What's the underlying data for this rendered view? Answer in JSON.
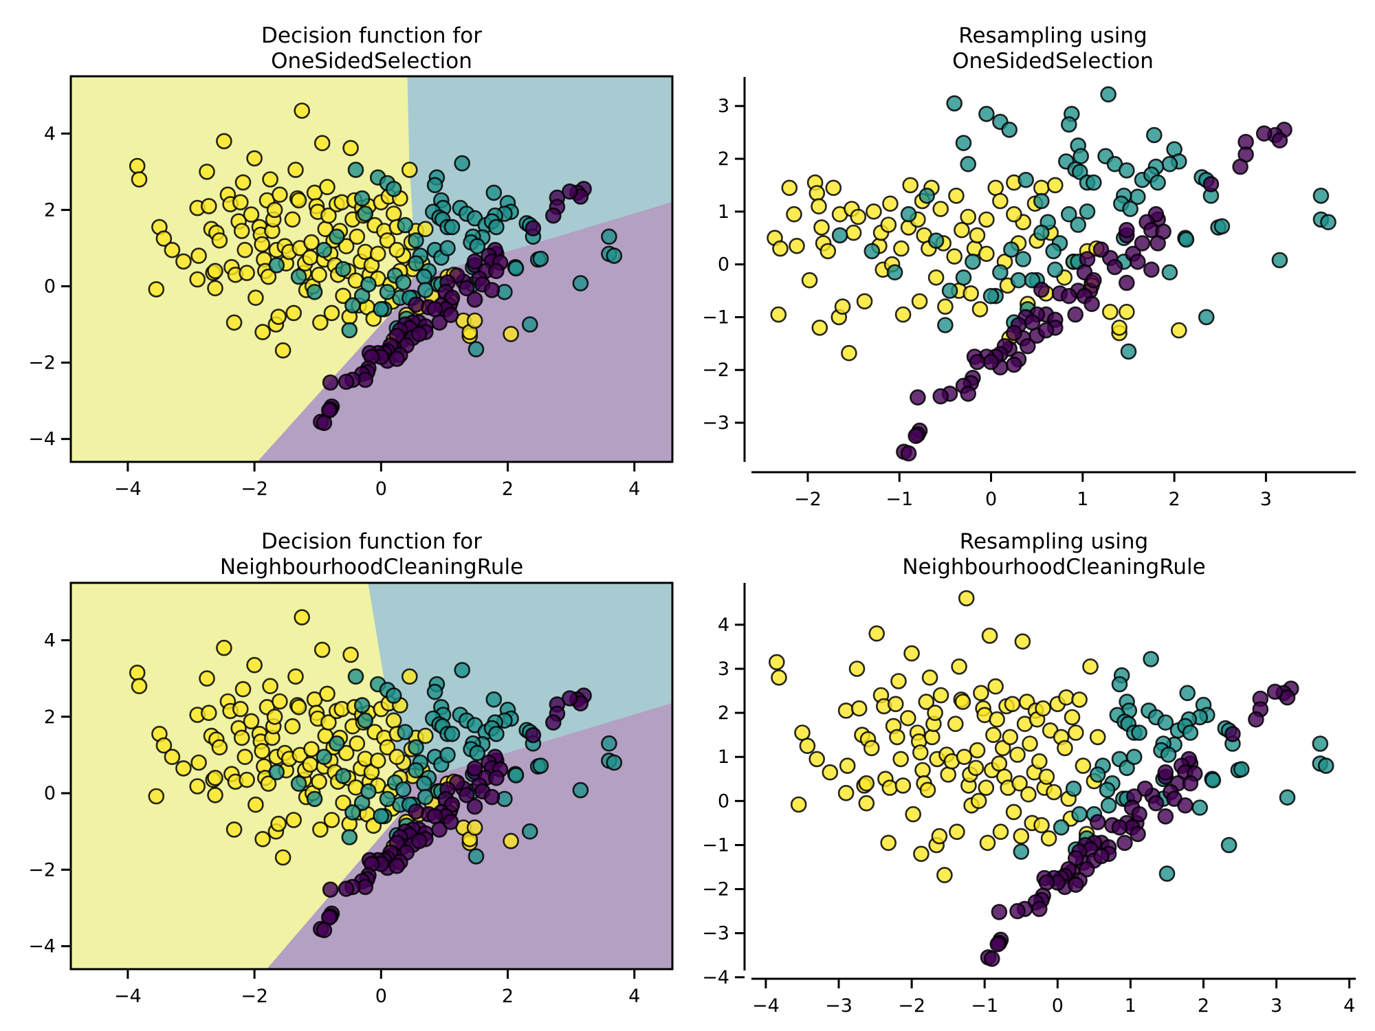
{
  "colors": {
    "class_0": "#440154",
    "class_1": "#21918c",
    "class_2": "#fde725",
    "region_0": "#b3a0c3",
    "region_1": "#a7cbd0",
    "region_2": "#f0f3a4"
  },
  "chart_data": [
    {
      "id": "decision-oss",
      "type": "scatter",
      "title": "Decision function for\n OneSidedSelection",
      "title_lines": [
        "Decision function for",
        "OneSidedSelection"
      ],
      "xlabel": "",
      "ylabel": "",
      "xlim": [
        -4.9,
        4.6
      ],
      "ylim": [
        -4.6,
        5.5
      ],
      "xticks": [
        -4,
        -2,
        0,
        2,
        4
      ],
      "yticks": [
        -4,
        -2,
        0,
        2,
        4
      ],
      "frame": "box",
      "grid": false,
      "background": "decision-regions",
      "regions": {
        "class_2": [
          [
            -4.9,
            5.5
          ],
          [
            0.42,
            5.5
          ],
          [
            0.45,
            3.3
          ],
          [
            0.5,
            1.9
          ],
          [
            0.5,
            0.2
          ],
          [
            0.25,
            -0.55
          ],
          [
            -1.95,
            -4.6
          ],
          [
            -4.9,
            -4.6
          ]
        ],
        "class_1": [
          [
            0.42,
            5.5
          ],
          [
            4.6,
            5.5
          ],
          [
            4.6,
            2.2
          ],
          [
            1.9,
            0.85
          ],
          [
            0.5,
            0.2
          ],
          [
            0.5,
            1.9
          ],
          [
            0.45,
            3.3
          ]
        ],
        "class_0": [
          [
            0.5,
            0.2
          ],
          [
            1.9,
            0.85
          ],
          [
            4.6,
            2.2
          ],
          [
            4.6,
            -4.6
          ],
          [
            -1.95,
            -4.6
          ],
          [
            0.25,
            -0.55
          ]
        ]
      },
      "points_source": "original"
    },
    {
      "id": "resample-oss",
      "type": "scatter",
      "title": "Resampling using\n OneSidedSelection",
      "title_lines": [
        "Resampling using",
        "OneSidedSelection"
      ],
      "xlabel": "",
      "ylabel": "",
      "xlim": [
        -2.6,
        3.95
      ],
      "ylim": [
        -3.95,
        3.55
      ],
      "xticks": [
        -2,
        -1,
        0,
        1,
        2,
        3
      ],
      "yticks": [
        -3,
        -2,
        -1,
        0,
        1,
        2,
        3
      ],
      "frame": "despined",
      "grid": false,
      "points_source": "oss"
    },
    {
      "id": "decision-ncr",
      "type": "scatter",
      "title": "Decision function for\nNeighbourhoodCleaningRule",
      "title_lines": [
        "Decision function for",
        "NeighbourhoodCleaningRule"
      ],
      "xlabel": "",
      "ylabel": "",
      "xlim": [
        -4.9,
        4.6
      ],
      "ylim": [
        -4.6,
        5.5
      ],
      "xticks": [
        -4,
        -2,
        0,
        2,
        4
      ],
      "yticks": [
        -4,
        -2,
        0,
        2,
        4
      ],
      "frame": "box",
      "grid": false,
      "background": "decision-regions",
      "regions": {
        "class_2": [
          [
            -4.9,
            5.5
          ],
          [
            -0.2,
            5.5
          ],
          [
            0.15,
            2.0
          ],
          [
            0.3,
            -0.55
          ],
          [
            -1.8,
            -4.6
          ],
          [
            -4.9,
            -4.6
          ]
        ],
        "class_1": [
          [
            -0.2,
            5.5
          ],
          [
            4.6,
            5.5
          ],
          [
            4.6,
            2.35
          ],
          [
            1.9,
            1.0
          ],
          [
            0.35,
            0.2
          ],
          [
            0.15,
            2.0
          ]
        ],
        "class_0": [
          [
            0.35,
            0.2
          ],
          [
            1.9,
            1.0
          ],
          [
            4.6,
            2.35
          ],
          [
            4.6,
            -4.6
          ],
          [
            -1.8,
            -4.6
          ],
          [
            0.3,
            -0.55
          ]
        ]
      },
      "points_source": "original"
    },
    {
      "id": "resample-ncr",
      "type": "scatter",
      "title": "Resampling using\nNeighbourhoodCleaningRule",
      "title_lines": [
        "Resampling using",
        "NeighbourhoodCleaningRule"
      ],
      "xlabel": "",
      "ylabel": "",
      "xlim": [
        -4.15,
        4.05
      ],
      "ylim": [
        -4.05,
        4.95
      ],
      "xticks": [
        -4,
        -3,
        -2,
        -1,
        0,
        1,
        2,
        3,
        4
      ],
      "yticks": [
        -4,
        -3,
        -2,
        -1,
        0,
        1,
        2,
        3,
        4
      ],
      "frame": "despined",
      "grid": false,
      "points_source": "ncr"
    }
  ],
  "datasets": {
    "class_2_core": [
      [
        -3.85,
        3.15
      ],
      [
        -3.82,
        2.8
      ],
      [
        -3.55,
        -0.08
      ],
      [
        -3.5,
        1.55
      ],
      [
        -3.43,
        1.25
      ],
      [
        -3.3,
        0.95
      ],
      [
        -3.12,
        0.65
      ],
      [
        -2.9,
        2.05
      ],
      [
        -2.88,
        0.8
      ],
      [
        -2.9,
        0.18
      ],
      [
        -2.75,
        3.0
      ],
      [
        -2.72,
        2.1
      ],
      [
        -2.68,
        1.5
      ],
      [
        -2.65,
        0.35
      ],
      [
        -2.62,
        0.4
      ],
      [
        -2.62,
        -0.05
      ],
      [
        -2.6,
        1.4
      ],
      [
        -2.55,
        1.2
      ],
      [
        -2.48,
        3.8
      ],
      [
        -2.42,
        2.4
      ],
      [
        -2.38,
        2.15
      ],
      [
        -2.36,
        0.5
      ],
      [
        -2.32,
        -0.95
      ],
      [
        -2.3,
        0.3
      ],
      [
        -2.25,
        1.7
      ],
      [
        -2.22,
        2.2
      ],
      [
        -2.2,
        1.45
      ],
      [
        -2.18,
        2.72
      ],
      [
        -2.15,
        0.95
      ],
      [
        -2.12,
        0.35
      ],
      [
        -2.05,
        1.88
      ],
      [
        -2.0,
        3.35
      ],
      [
        -1.98,
        -0.3
      ],
      [
        -1.92,
        1.55
      ],
      [
        -1.9,
        1.35
      ],
      [
        -1.88,
        1.1
      ],
      [
        -1.87,
        -1.2
      ],
      [
        -1.85,
        0.7
      ],
      [
        -1.83,
        0.4
      ],
      [
        -1.8,
        2.25
      ],
      [
        -1.78,
        0.25
      ],
      [
        -1.75,
        2.8
      ],
      [
        -1.72,
        1.45
      ],
      [
        -1.7,
        1.75
      ],
      [
        -1.68,
        2.0
      ],
      [
        -1.66,
        -1.0
      ],
      [
        -1.65,
        0.95
      ],
      [
        -1.62,
        -0.8
      ],
      [
        -1.6,
        2.4
      ],
      [
        -1.55,
        -1.68
      ],
      [
        -1.52,
        1.05
      ],
      [
        -1.5,
        0.6
      ],
      [
        -1.45,
        0.9
      ],
      [
        -1.4,
        1.75
      ],
      [
        -1.38,
        -0.7
      ],
      [
        -1.35,
        3.05
      ],
      [
        -1.32,
        2.3
      ],
      [
        -1.3,
        2.25
      ],
      [
        -1.28,
        1.0
      ],
      [
        -1.25,
        4.6
      ],
      [
        -1.22,
        0.35
      ],
      [
        -1.2,
        0.6
      ],
      [
        -1.18,
        -0.1
      ],
      [
        -1.12,
        0.75
      ],
      [
        -1.1,
        1.15
      ],
      [
        -1.08,
        0.0
      ],
      [
        -1.05,
        2.45
      ],
      [
        -1.02,
        2.1
      ],
      [
        -1.0,
        1.95
      ],
      [
        -0.98,
        0.3
      ],
      [
        -0.96,
        -0.95
      ],
      [
        -0.93,
        3.75
      ],
      [
        -0.9,
        0.7
      ],
      [
        -0.88,
        1.5
      ],
      [
        -0.85,
        2.6
      ],
      [
        -0.83,
        1.85
      ],
      [
        -0.8,
        0.85
      ],
      [
        -0.78,
        -0.7
      ],
      [
        -0.75,
        1.2
      ],
      [
        -0.73,
        0.55
      ],
      [
        -0.7,
        2.15
      ],
      [
        -0.68,
        0.3
      ],
      [
        -0.65,
        1.45
      ],
      [
        -0.62,
        2.2
      ],
      [
        -0.6,
        -0.25
      ],
      [
        -0.55,
        1.05
      ],
      [
        -0.52,
        0.4
      ],
      [
        -0.5,
        -0.8
      ],
      [
        -0.48,
        3.62
      ],
      [
        -0.45,
        1.75
      ],
      [
        -0.42,
        2.25
      ],
      [
        -0.4,
        0.15
      ],
      [
        -0.38,
        1.3
      ],
      [
        -0.35,
        -0.5
      ],
      [
        -0.32,
        0.65
      ],
      [
        -0.3,
        2.05
      ],
      [
        -0.28,
        1.85
      ],
      [
        -0.25,
        0.9
      ],
      [
        -0.22,
        -0.55
      ],
      [
        -0.2,
        2.1
      ],
      [
        -0.18,
        0.3
      ],
      [
        -0.15,
        0.55
      ],
      [
        -0.12,
        -0.85
      ],
      [
        -0.1,
        1.6
      ],
      [
        -0.05,
        0.2
      ],
      [
        0.0,
        2.2
      ],
      [
        0.05,
        1.45
      ],
      [
        0.1,
        1.2
      ],
      [
        0.12,
        2.35
      ],
      [
        0.15,
        0.05
      ],
      [
        0.18,
        -0.4
      ],
      [
        0.2,
        1.9
      ],
      [
        0.25,
        1.55
      ],
      [
        0.3,
        2.3
      ],
      [
        0.35,
        0.8
      ],
      [
        0.4,
        -0.75
      ],
      [
        0.45,
        3.05
      ],
      [
        0.5,
        0.45
      ],
      [
        0.55,
        1.45
      ]
    ],
    "class_2_border": [
      [
        0.25,
        0.95
      ],
      [
        0.3,
        0.4
      ],
      [
        0.2,
        -1.4
      ],
      [
        0.6,
        -0.55
      ],
      [
        0.7,
        1.5
      ],
      [
        0.8,
        -0.25
      ],
      [
        0.9,
        0.05
      ],
      [
        1.05,
        0.25
      ],
      [
        1.1,
        -0.35
      ],
      [
        1.1,
        -0.4
      ],
      [
        1.3,
        -0.9
      ],
      [
        1.4,
        -1.3
      ],
      [
        1.4,
        -1.2
      ],
      [
        1.48,
        -0.9
      ],
      [
        2.05,
        -1.25
      ],
      [
        0.65,
        0.6
      ],
      [
        0.48,
        1.15
      ],
      [
        -0.05,
        0.85
      ],
      [
        1.15,
        0.3
      ]
    ],
    "class_1_core": [
      [
        1.28,
        3.22
      ],
      [
        0.88,
        2.85
      ],
      [
        0.85,
        2.65
      ],
      [
        1.78,
        2.45
      ],
      [
        0.95,
        2.25
      ],
      [
        2.0,
        2.18
      ],
      [
        0.98,
        2.05
      ],
      [
        1.25,
        2.05
      ],
      [
        2.05,
        1.95
      ],
      [
        0.82,
        1.95
      ],
      [
        1.35,
        1.9
      ],
      [
        1.48,
        1.78
      ],
      [
        0.92,
        1.8
      ],
      [
        1.95,
        1.9
      ],
      [
        1.8,
        1.85
      ],
      [
        0.97,
        1.75
      ],
      [
        1.65,
        1.6
      ],
      [
        1.75,
        1.7
      ],
      [
        1.82,
        1.55
      ],
      [
        1.05,
        1.55
      ],
      [
        1.12,
        1.55
      ],
      [
        2.3,
        1.65
      ],
      [
        2.35,
        1.6
      ],
      [
        2.4,
        1.3
      ],
      [
        1.6,
        1.28
      ],
      [
        1.45,
        1.3
      ],
      [
        1.42,
        1.15
      ],
      [
        1.52,
        1.05
      ],
      [
        3.6,
        1.3
      ],
      [
        0.85,
        0.95
      ],
      [
        0.95,
        0.75
      ],
      [
        1.05,
        1.0
      ],
      [
        3.6,
        0.85
      ],
      [
        3.68,
        0.8
      ],
      [
        2.48,
        0.7
      ],
      [
        2.52,
        0.72
      ],
      [
        2.12,
        0.5
      ],
      [
        2.13,
        0.47
      ],
      [
        0.62,
        0.8
      ],
      [
        0.75,
        0.4
      ],
      [
        0.55,
        0.6
      ],
      [
        0.68,
        0.25
      ],
      [
        0.3,
        -0.3
      ],
      [
        3.15,
        0.08
      ],
      [
        1.95,
        -0.15
      ],
      [
        0.9,
        0.05
      ],
      [
        0.95,
        0.05
      ],
      [
        1.45,
        0.5
      ],
      [
        1.45,
        0.05
      ],
      [
        0.5,
        -0.3
      ],
      [
        0.05,
        -0.6
      ],
      [
        -0.5,
        -1.15
      ],
      [
        1.5,
        -1.65
      ],
      [
        2.35,
        -1.0
      ],
      [
        0.25,
        -1.1
      ],
      [
        0.4,
        -0.85
      ],
      [
        0.22,
        0.28
      ],
      [
        0.7,
        -0.1
      ]
    ],
    "class_1_border": [
      [
        -0.4,
        3.05
      ],
      [
        -0.05,
        2.85
      ],
      [
        0.1,
        2.7
      ],
      [
        -0.3,
        2.3
      ],
      [
        0.2,
        2.55
      ],
      [
        -0.25,
        1.9
      ],
      [
        -0.7,
        1.3
      ],
      [
        -0.9,
        0.95
      ],
      [
        -1.65,
        0.55
      ],
      [
        -1.3,
        0.25
      ],
      [
        -1.05,
        -0.15
      ],
      [
        -0.6,
        0.45
      ],
      [
        -0.3,
        -0.25
      ],
      [
        -0.2,
        0.05
      ],
      [
        0.0,
        -0.6
      ],
      [
        0.1,
        -0.15
      ],
      [
        0.35,
        0.1
      ],
      [
        0.45,
        -0.3
      ],
      [
        0.38,
        1.6
      ],
      [
        0.55,
        1.2
      ],
      [
        -0.45,
        -0.5
      ]
    ],
    "class_0_all": [
      [
        3.2,
        2.55
      ],
      [
        3.1,
        2.45
      ],
      [
        3.15,
        2.35
      ],
      [
        2.98,
        2.48
      ],
      [
        2.78,
        2.32
      ],
      [
        2.78,
        2.08
      ],
      [
        2.72,
        1.85
      ],
      [
        2.4,
        1.52
      ],
      [
        1.82,
        0.85
      ],
      [
        1.8,
        0.95
      ],
      [
        1.7,
        0.8
      ],
      [
        1.75,
        0.65
      ],
      [
        1.88,
        0.62
      ],
      [
        1.48,
        0.55
      ],
      [
        1.48,
        0.65
      ],
      [
        1.3,
        0.12
      ],
      [
        1.65,
        0.4
      ],
      [
        1.82,
        0.4
      ],
      [
        1.2,
        0.28
      ],
      [
        1.05,
        0.1
      ],
      [
        1.55,
        0.2
      ],
      [
        1.6,
        0.05
      ],
      [
        1.75,
        -0.1
      ],
      [
        1.02,
        -0.15
      ],
      [
        1.35,
        -0.05
      ],
      [
        1.48,
        -0.35
      ],
      [
        1.08,
        -0.5
      ],
      [
        1.12,
        -0.3
      ],
      [
        0.95,
        -0.5
      ],
      [
        0.92,
        -0.95
      ],
      [
        1.02,
        -0.6
      ],
      [
        1.1,
        -0.75
      ],
      [
        0.75,
        -0.55
      ],
      [
        0.55,
        -0.48
      ],
      [
        0.6,
        -0.95
      ],
      [
        0.5,
        -0.95
      ],
      [
        0.7,
        -1.05
      ],
      [
        0.7,
        -1.2
      ],
      [
        0.38,
        -1.0
      ],
      [
        0.45,
        -1.1
      ],
      [
        0.3,
        -1.15
      ],
      [
        0.35,
        -1.4
      ],
      [
        0.25,
        -1.3
      ],
      [
        0.5,
        -1.35
      ],
      [
        0.4,
        -1.55
      ],
      [
        0.2,
        -1.6
      ],
      [
        0.15,
        -1.55
      ],
      [
        0.1,
        -1.7
      ],
      [
        0.05,
        -1.75
      ],
      [
        -0.05,
        -1.75
      ],
      [
        0.1,
        -1.95
      ],
      [
        0.0,
        -1.85
      ],
      [
        -0.18,
        -1.75
      ],
      [
        -0.15,
        -1.85
      ],
      [
        0.3,
        -1.8
      ],
      [
        0.25,
        -1.9
      ],
      [
        -0.2,
        -2.15
      ],
      [
        -0.22,
        -2.25
      ],
      [
        -0.3,
        -2.3
      ],
      [
        -0.25,
        -2.45
      ],
      [
        -0.45,
        -2.45
      ],
      [
        -0.55,
        -2.5
      ],
      [
        -0.8,
        -2.52
      ],
      [
        -0.78,
        -3.15
      ],
      [
        -0.8,
        -3.22
      ],
      [
        -0.82,
        -3.25
      ],
      [
        -0.95,
        -3.55
      ],
      [
        -0.9,
        -3.58
      ],
      [
        0.6,
        -1.25
      ],
      [
        0.85,
        -0.6
      ]
    ]
  }
}
